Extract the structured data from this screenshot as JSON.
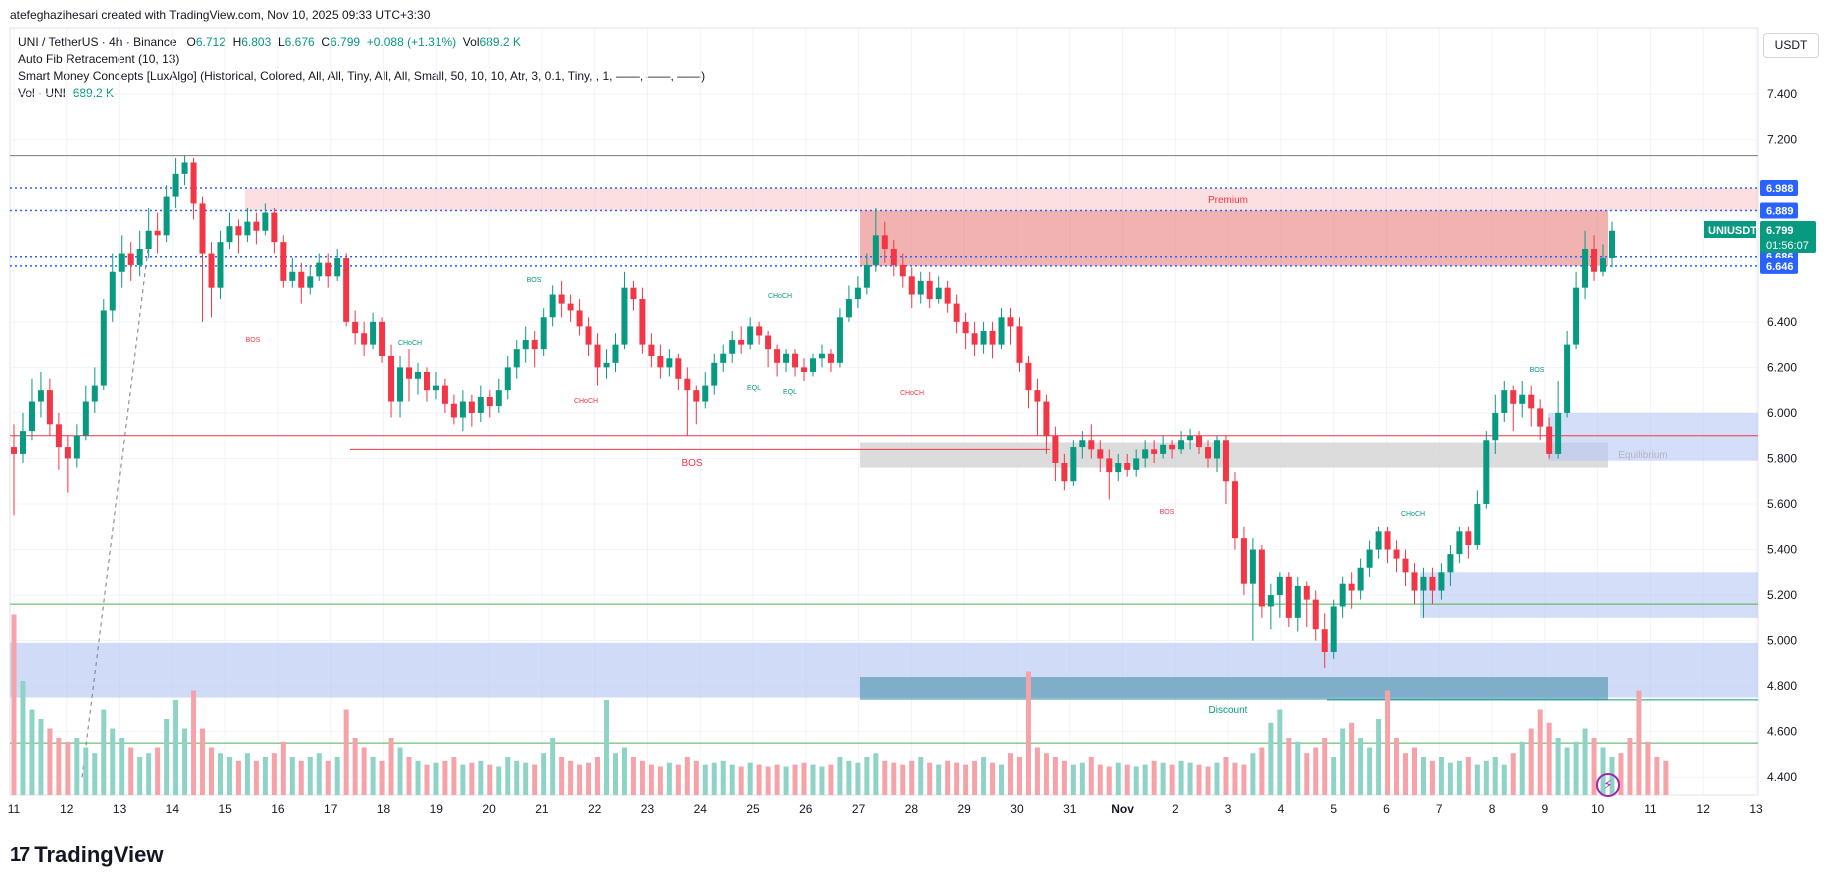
{
  "header": {
    "attribution": "atefeghazihesari created with TradingView.com, Nov 10, 2025 09:33 UTC+3:30",
    "symbol_line": "UNI / TetherUS · 4h · Binance",
    "o_label": "O",
    "o_value": "6.712",
    "h_label": "H",
    "h_value": "6.803",
    "l_label": "L",
    "l_value": "6.676",
    "c_label": "C",
    "c_value": "6.799",
    "change": "+0.088 (+1.31%)",
    "vol_label": "Vol",
    "vol_value": "689.2 K",
    "indicator1": "Auto Fib Retracement (10, 13)",
    "indicator2": "Smart Money Concepts [LuxAlgo] (Historical, Colored, All, All, Tiny, All, All, Small, 50, 10, 10, Atr, 3, 0.1, Tiny, , 1, ——, ——, ——)",
    "vol_line_label": "Vol · UNI",
    "vol_line_value": "689.2 K"
  },
  "currency": "USDT",
  "footer_brand": "TradingView",
  "colors": {
    "up": "#089981",
    "down": "#f23645",
    "up_vol": "#8fd3c7",
    "down_vol": "#f5a3a9",
    "premium_zone": "#f7c5c8",
    "discount_zone": "#b7c8f3",
    "equilibrium_zone": "#d3d3d3",
    "fib_line": "#2962ff",
    "price_label_bg": "#2962ff",
    "last_price_bg": "#089981"
  },
  "chart_data": {
    "type": "candlestick",
    "symbol": "UNIUSDT",
    "timeframe": "4h",
    "y_ticks": [
      "7.400",
      "7.200",
      "6.400",
      "6.200",
      "6.000",
      "5.800",
      "5.600",
      "5.400",
      "5.200",
      "5.000",
      "4.800",
      "4.600",
      "4.400"
    ],
    "ylim": [
      4.3,
      7.55
    ],
    "x_ticks": [
      "11",
      "12",
      "13",
      "14",
      "15",
      "16",
      "17",
      "18",
      "19",
      "20",
      "21",
      "22",
      "23",
      "24",
      "25",
      "26",
      "27",
      "28",
      "29",
      "30",
      "31",
      "Nov",
      "2",
      "3",
      "4",
      "5",
      "6",
      "7",
      "8",
      "9",
      "10",
      "11",
      "12",
      "13"
    ],
    "price_labels": [
      {
        "text": "6.988",
        "value": 6.988
      },
      {
        "text": "6.889",
        "value": 6.889
      },
      {
        "text": "6.686",
        "value": 6.686
      },
      {
        "text": "6.646",
        "value": 6.646
      }
    ],
    "last_price": {
      "symbol": "UNIUSDT",
      "value": "6.799",
      "countdown": "01:56:07"
    },
    "annotations": {
      "premium": "Premium",
      "discount": "Discount",
      "equilibrium": "Equilibrium",
      "bos": "BOS",
      "choch": "CHoCH",
      "eql": "EQL"
    },
    "candles": [
      [
        5.85,
        5.82,
        5.95,
        5.55
      ],
      [
        5.82,
        5.92,
        6.0,
        5.78
      ],
      [
        5.92,
        6.05,
        6.15,
        5.88
      ],
      [
        6.05,
        6.1,
        6.18,
        5.98
      ],
      [
        6.1,
        5.95,
        6.15,
        5.9
      ],
      [
        5.95,
        5.85,
        6.0,
        5.75
      ],
      [
        5.85,
        5.8,
        5.9,
        5.65
      ],
      [
        5.8,
        5.9,
        5.95,
        5.76
      ],
      [
        5.9,
        6.05,
        6.12,
        5.88
      ],
      [
        6.05,
        6.12,
        6.2,
        6.0
      ],
      [
        6.12,
        6.45,
        6.5,
        6.1
      ],
      [
        6.45,
        6.62,
        6.7,
        6.4
      ],
      [
        6.62,
        6.7,
        6.78,
        6.55
      ],
      [
        6.7,
        6.65,
        6.75,
        6.58
      ],
      [
        6.65,
        6.72,
        6.8,
        6.6
      ],
      [
        6.72,
        6.8,
        6.9,
        6.68
      ],
      [
        6.8,
        6.78,
        6.88,
        6.7
      ],
      [
        6.78,
        6.95,
        7.0,
        6.75
      ],
      [
        6.95,
        7.05,
        7.12,
        6.9
      ],
      [
        7.05,
        7.1,
        7.13,
        7.0
      ],
      [
        7.1,
        6.92,
        7.12,
        6.85
      ],
      [
        6.92,
        6.7,
        6.95,
        6.4
      ],
      [
        6.7,
        6.55,
        6.75,
        6.42
      ],
      [
        6.55,
        6.75,
        6.8,
        6.5
      ],
      [
        6.75,
        6.82,
        6.88,
        6.72
      ],
      [
        6.82,
        6.78,
        6.85,
        6.7
      ],
      [
        6.78,
        6.84,
        6.9,
        6.75
      ],
      [
        6.84,
        6.8,
        6.88,
        6.74
      ],
      [
        6.8,
        6.88,
        6.92,
        6.78
      ],
      [
        6.88,
        6.75,
        6.9,
        6.7
      ],
      [
        6.75,
        6.58,
        6.78,
        6.55
      ],
      [
        6.58,
        6.62,
        6.68,
        6.55
      ],
      [
        6.62,
        6.55,
        6.66,
        6.48
      ],
      [
        6.55,
        6.6,
        6.65,
        6.52
      ],
      [
        6.6,
        6.66,
        6.7,
        6.58
      ],
      [
        6.66,
        6.6,
        6.7,
        6.55
      ],
      [
        6.6,
        6.68,
        6.72,
        6.58
      ],
      [
        6.68,
        6.4,
        6.7,
        6.38
      ],
      [
        6.4,
        6.35,
        6.45,
        6.3
      ],
      [
        6.35,
        6.3,
        6.4,
        6.25
      ],
      [
        6.3,
        6.4,
        6.44,
        6.28
      ],
      [
        6.4,
        6.25,
        6.42,
        6.22
      ],
      [
        6.25,
        6.05,
        6.3,
        5.98
      ],
      [
        6.05,
        6.2,
        6.25,
        5.98
      ],
      [
        6.2,
        6.15,
        6.28,
        6.05
      ],
      [
        6.15,
        6.18,
        6.22,
        6.08
      ],
      [
        6.18,
        6.1,
        6.2,
        6.05
      ],
      [
        6.1,
        6.12,
        6.18,
        6.06
      ],
      [
        6.12,
        6.04,
        6.15,
        6.0
      ],
      [
        6.04,
        5.98,
        6.08,
        5.95
      ],
      [
        5.98,
        6.05,
        6.1,
        5.92
      ],
      [
        6.05,
        6.0,
        6.08,
        5.94
      ],
      [
        6.0,
        6.07,
        6.12,
        5.96
      ],
      [
        6.07,
        6.03,
        6.1,
        5.98
      ],
      [
        6.03,
        6.1,
        6.15,
        6.0
      ],
      [
        6.1,
        6.2,
        6.25,
        6.06
      ],
      [
        6.2,
        6.28,
        6.32,
        6.15
      ],
      [
        6.28,
        6.32,
        6.38,
        6.22
      ],
      [
        6.32,
        6.28,
        6.36,
        6.2
      ],
      [
        6.28,
        6.42,
        6.46,
        6.25
      ],
      [
        6.42,
        6.52,
        6.56,
        6.38
      ],
      [
        6.52,
        6.48,
        6.58,
        6.42
      ],
      [
        6.48,
        6.45,
        6.52,
        6.4
      ],
      [
        6.45,
        6.38,
        6.5,
        6.34
      ],
      [
        6.38,
        6.3,
        6.42,
        6.25
      ],
      [
        6.3,
        6.2,
        6.35,
        6.12
      ],
      [
        6.2,
        6.22,
        6.28,
        6.15
      ],
      [
        6.22,
        6.3,
        6.35,
        6.18
      ],
      [
        6.3,
        6.55,
        6.62,
        6.28
      ],
      [
        6.55,
        6.5,
        6.58,
        6.45
      ],
      [
        6.5,
        6.3,
        6.55,
        6.26
      ],
      [
        6.3,
        6.25,
        6.35,
        6.2
      ],
      [
        6.25,
        6.2,
        6.3,
        6.15
      ],
      [
        6.2,
        6.24,
        6.28,
        6.16
      ],
      [
        6.24,
        6.15,
        6.26,
        6.1
      ],
      [
        6.15,
        6.1,
        6.2,
        5.9
      ],
      [
        6.1,
        6.05,
        6.12,
        5.95
      ],
      [
        6.05,
        6.12,
        6.18,
        6.02
      ],
      [
        6.12,
        6.22,
        6.26,
        6.08
      ],
      [
        6.22,
        6.26,
        6.3,
        6.18
      ],
      [
        6.26,
        6.32,
        6.36,
        6.22
      ],
      [
        6.32,
        6.3,
        6.38,
        6.26
      ],
      [
        6.3,
        6.38,
        6.42,
        6.28
      ],
      [
        6.38,
        6.34,
        6.4,
        6.3
      ],
      [
        6.34,
        6.28,
        6.36,
        6.2
      ],
      [
        6.28,
        6.22,
        6.3,
        6.16
      ],
      [
        6.22,
        6.26,
        6.28,
        6.18
      ],
      [
        6.26,
        6.2,
        6.28,
        6.16
      ],
      [
        6.2,
        6.18,
        6.24,
        6.14
      ],
      [
        6.18,
        6.24,
        6.26,
        6.16
      ],
      [
        6.24,
        6.26,
        6.3,
        6.2
      ],
      [
        6.26,
        6.22,
        6.28,
        6.18
      ],
      [
        6.22,
        6.42,
        6.46,
        6.2
      ],
      [
        6.42,
        6.5,
        6.56,
        6.4
      ],
      [
        6.5,
        6.55,
        6.6,
        6.46
      ],
      [
        6.55,
        6.65,
        6.7,
        6.52
      ],
      [
        6.65,
        6.78,
        6.9,
        6.62
      ],
      [
        6.78,
        6.72,
        6.84,
        6.66
      ],
      [
        6.72,
        6.65,
        6.76,
        6.6
      ],
      [
        6.65,
        6.6,
        6.7,
        6.55
      ],
      [
        6.6,
        6.52,
        6.64,
        6.46
      ],
      [
        6.52,
        6.58,
        6.62,
        6.48
      ],
      [
        6.58,
        6.5,
        6.62,
        6.46
      ],
      [
        6.5,
        6.55,
        6.6,
        6.48
      ],
      [
        6.55,
        6.48,
        6.58,
        6.44
      ],
      [
        6.48,
        6.4,
        6.52,
        6.35
      ],
      [
        6.4,
        6.35,
        6.44,
        6.28
      ],
      [
        6.35,
        6.3,
        6.4,
        6.25
      ],
      [
        6.3,
        6.36,
        6.4,
        6.26
      ],
      [
        6.36,
        6.3,
        6.4,
        6.24
      ],
      [
        6.3,
        6.42,
        6.46,
        6.28
      ],
      [
        6.42,
        6.38,
        6.46,
        6.3
      ],
      [
        6.38,
        6.22,
        6.42,
        6.18
      ],
      [
        6.22,
        6.1,
        6.25,
        6.02
      ],
      [
        6.1,
        6.05,
        6.15,
        5.9
      ],
      [
        6.05,
        5.9,
        6.08,
        5.82
      ],
      [
        5.9,
        5.78,
        5.94,
        5.7
      ],
      [
        5.78,
        5.7,
        5.82,
        5.66
      ],
      [
        5.7,
        5.85,
        5.88,
        5.68
      ],
      [
        5.85,
        5.88,
        5.92,
        5.8
      ],
      [
        5.88,
        5.84,
        5.95,
        5.8
      ],
      [
        5.84,
        5.8,
        5.88,
        5.74
      ],
      [
        5.8,
        5.74,
        5.84,
        5.62
      ],
      [
        5.74,
        5.78,
        5.82,
        5.7
      ],
      [
        5.78,
        5.75,
        5.82,
        5.72
      ],
      [
        5.75,
        5.8,
        5.84,
        5.72
      ],
      [
        5.8,
        5.84,
        5.88,
        5.76
      ],
      [
        5.84,
        5.82,
        5.88,
        5.78
      ],
      [
        5.82,
        5.86,
        5.9,
        5.8
      ],
      [
        5.86,
        5.84,
        5.88,
        5.8
      ],
      [
        5.84,
        5.88,
        5.92,
        5.82
      ],
      [
        5.88,
        5.9,
        5.93,
        5.84
      ],
      [
        5.9,
        5.85,
        5.92,
        5.82
      ],
      [
        5.85,
        5.8,
        5.88,
        5.76
      ],
      [
        5.8,
        5.88,
        5.9,
        5.74
      ],
      [
        5.88,
        5.7,
        5.9,
        5.6
      ],
      [
        5.7,
        5.45,
        5.74,
        5.4
      ],
      [
        5.45,
        5.25,
        5.5,
        5.2
      ],
      [
        5.25,
        5.4,
        5.45,
        5.0
      ],
      [
        5.4,
        5.15,
        5.42,
        5.1
      ],
      [
        5.15,
        5.2,
        5.25,
        5.05
      ],
      [
        5.2,
        5.28,
        5.3,
        5.1
      ],
      [
        5.28,
        5.1,
        5.3,
        5.06
      ],
      [
        5.1,
        5.24,
        5.28,
        5.04
      ],
      [
        5.24,
        5.18,
        5.26,
        5.06
      ],
      [
        5.18,
        5.05,
        5.22,
        5.0
      ],
      [
        5.05,
        4.95,
        5.12,
        4.88
      ],
      [
        4.95,
        5.15,
        5.18,
        4.92
      ],
      [
        5.15,
        5.25,
        5.28,
        5.1
      ],
      [
        5.25,
        5.22,
        5.3,
        5.14
      ],
      [
        5.22,
        5.32,
        5.36,
        5.18
      ],
      [
        5.32,
        5.4,
        5.44,
        5.28
      ],
      [
        5.4,
        5.48,
        5.5,
        5.36
      ],
      [
        5.48,
        5.4,
        5.5,
        5.34
      ],
      [
        5.4,
        5.36,
        5.44,
        5.3
      ],
      [
        5.36,
        5.3,
        5.4,
        5.24
      ],
      [
        5.3,
        5.22,
        5.34,
        5.16
      ],
      [
        5.22,
        5.28,
        5.32,
        5.1
      ],
      [
        5.28,
        5.22,
        5.32,
        5.16
      ],
      [
        5.22,
        5.3,
        5.34,
        5.18
      ],
      [
        5.3,
        5.38,
        5.42,
        5.24
      ],
      [
        5.38,
        5.48,
        5.5,
        5.34
      ],
      [
        5.48,
        5.42,
        5.5,
        5.36
      ],
      [
        5.42,
        5.6,
        5.66,
        5.4
      ],
      [
        5.6,
        5.88,
        5.92,
        5.58
      ],
      [
        5.88,
        6.0,
        6.08,
        5.82
      ],
      [
        6.0,
        6.1,
        6.14,
        5.96
      ],
      [
        6.1,
        6.04,
        6.12,
        5.92
      ],
      [
        6.04,
        6.08,
        6.14,
        5.98
      ],
      [
        6.08,
        6.02,
        6.12,
        5.94
      ],
      [
        6.02,
        5.94,
        6.06,
        5.88
      ],
      [
        5.94,
        5.82,
        5.98,
        5.8
      ],
      [
        5.82,
        6.0,
        6.14,
        5.8
      ],
      [
        6.0,
        6.3,
        6.36,
        5.98
      ],
      [
        6.3,
        6.55,
        6.62,
        6.28
      ],
      [
        6.55,
        6.72,
        6.8,
        6.5
      ],
      [
        6.72,
        6.62,
        6.78,
        6.58
      ],
      [
        6.62,
        6.68,
        6.74,
        6.6
      ],
      [
        6.68,
        6.8,
        6.84,
        6.64
      ]
    ],
    "volumes": [
      0.95,
      0.6,
      0.45,
      0.4,
      0.35,
      0.3,
      0.28,
      0.3,
      0.25,
      0.22,
      0.45,
      0.35,
      0.3,
      0.25,
      0.2,
      0.22,
      0.25,
      0.4,
      0.5,
      0.35,
      0.55,
      0.35,
      0.25,
      0.22,
      0.2,
      0.18,
      0.22,
      0.18,
      0.2,
      0.22,
      0.28,
      0.2,
      0.18,
      0.2,
      0.22,
      0.18,
      0.2,
      0.45,
      0.3,
      0.25,
      0.2,
      0.18,
      0.3,
      0.25,
      0.2,
      0.18,
      0.16,
      0.17,
      0.18,
      0.2,
      0.16,
      0.17,
      0.18,
      0.16,
      0.15,
      0.2,
      0.18,
      0.17,
      0.16,
      0.22,
      0.3,
      0.2,
      0.18,
      0.16,
      0.17,
      0.2,
      0.5,
      0.22,
      0.25,
      0.2,
      0.18,
      0.16,
      0.15,
      0.17,
      0.16,
      0.2,
      0.18,
      0.16,
      0.17,
      0.18,
      0.16,
      0.15,
      0.17,
      0.16,
      0.15,
      0.16,
      0.15,
      0.16,
      0.17,
      0.16,
      0.15,
      0.16,
      0.2,
      0.18,
      0.17,
      0.2,
      0.22,
      0.18,
      0.17,
      0.16,
      0.18,
      0.2,
      0.17,
      0.16,
      0.18,
      0.17,
      0.16,
      0.18,
      0.2,
      0.17,
      0.16,
      0.22,
      0.2,
      0.65,
      0.25,
      0.22,
      0.2,
      0.18,
      0.16,
      0.17,
      0.2,
      0.16,
      0.15,
      0.17,
      0.16,
      0.15,
      0.16,
      0.18,
      0.17,
      0.16,
      0.18,
      0.17,
      0.16,
      0.15,
      0.17,
      0.2,
      0.17,
      0.16,
      0.22,
      0.25,
      0.38,
      0.45,
      0.3,
      0.28,
      0.22,
      0.25,
      0.3,
      0.2,
      0.35,
      0.38,
      0.3,
      0.25,
      0.4,
      0.55,
      0.3,
      0.22,
      0.25,
      0.2,
      0.18,
      0.2,
      0.17,
      0.18,
      0.2,
      0.16,
      0.18,
      0.2,
      0.16,
      0.22,
      0.28,
      0.35,
      0.45,
      0.38,
      0.3,
      0.25,
      0.28,
      0.35,
      0.3,
      0.25,
      0.2,
      0.22,
      0.3,
      0.55,
      0.28,
      0.2,
      0.18
    ],
    "x_axis_label": "",
    "y_axis_label": ""
  }
}
